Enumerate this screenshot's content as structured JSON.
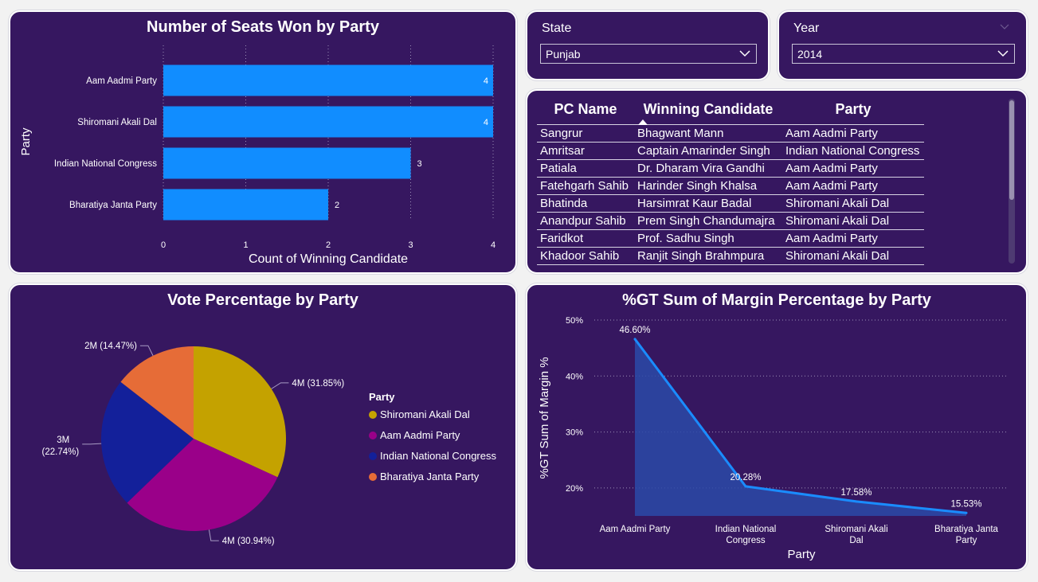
{
  "colors": {
    "card_bg": "#361760",
    "bar": "#118dff",
    "pie_shiromani": "#c4a200",
    "pie_aap": "#9a0089",
    "pie_inc": "#13209a",
    "pie_bjp": "#e66c37",
    "area_line": "#1a8cff"
  },
  "seats_chart": {
    "title": "Number of Seats Won by Party",
    "chart_data": {
      "type": "bar",
      "orientation": "horizontal",
      "categories": [
        "Aam Aadmi Party",
        "Shiromani Akali Dal",
        "Indian National Congress",
        "Bharatiya Janta Party"
      ],
      "values": [
        4,
        4,
        3,
        2
      ],
      "data_labels": [
        "4",
        "4",
        "3",
        "2"
      ],
      "xlabel": "Count of Winning Candidate",
      "ylabel": "Party",
      "xlim": [
        0,
        4
      ],
      "xticks": [
        "0",
        "1",
        "2",
        "3",
        "4"
      ],
      "grid": "vertical dotted"
    }
  },
  "state_slicer": {
    "label": "State",
    "value": "Punjab"
  },
  "year_slicer": {
    "label": "Year",
    "value": "2014"
  },
  "pc_table": {
    "columns": [
      "PC Name",
      "Winning Candidate",
      "Party"
    ],
    "sort_column": 1,
    "rows": [
      [
        "Sangrur",
        "Bhagwant Mann",
        "Aam Aadmi Party"
      ],
      [
        "Amritsar",
        "Captain Amarinder Singh",
        "Indian National Congress"
      ],
      [
        "Patiala",
        "Dr. Dharam Vira Gandhi",
        "Aam Aadmi Party"
      ],
      [
        "Fatehgarh Sahib",
        "Harinder Singh Khalsa",
        "Aam Aadmi Party"
      ],
      [
        "Bhatinda",
        "Harsimrat Kaur Badal",
        "Shiromani Akali Dal"
      ],
      [
        "Anandpur Sahib",
        "Prem Singh Chandumajra",
        "Shiromani Akali Dal"
      ],
      [
        "Faridkot",
        "Prof. Sadhu Singh",
        "Aam Aadmi Party"
      ],
      [
        "Khadoor Sahib",
        "Ranjit Singh Brahmpura",
        "Shiromani Akali Dal"
      ]
    ]
  },
  "vote_chart": {
    "title": "Vote Percentage by Party",
    "chart_data": {
      "type": "pie",
      "legend_title": "Party",
      "legend_position": "right",
      "slices": [
        {
          "name": "Shiromani Akali Dal",
          "percent": 31.85,
          "label": "4M (31.85%)"
        },
        {
          "name": "Aam Aadmi Party",
          "percent": 30.94,
          "label": "4M (30.94%)"
        },
        {
          "name": "Indian National Congress",
          "percent": 22.74,
          "label_line1": "3M",
          "label_line2": "(22.74%)"
        },
        {
          "name": "Bharatiya Janta Party",
          "percent": 14.47,
          "label": "2M (14.47%)"
        }
      ]
    }
  },
  "margin_chart": {
    "title": "%GT Sum of Margin Percentage by Party",
    "chart_data": {
      "type": "area",
      "categories": [
        [
          "Aam Aadmi Party"
        ],
        [
          "Indian National",
          "Congress"
        ],
        [
          "Shiromani Akali",
          "Dal"
        ],
        [
          "Bharatiya Janta",
          "Party"
        ]
      ],
      "values": [
        46.6,
        20.28,
        17.58,
        15.53
      ],
      "data_labels": [
        "46.60%",
        "20.28%",
        "17.58%",
        "15.53%"
      ],
      "xlabel": "Party",
      "ylabel": "%GT Sum of Margin %",
      "ylim": [
        15,
        50
      ],
      "yticks": [
        20,
        30,
        40,
        50
      ],
      "ytick_labels": [
        "20%",
        "30%",
        "40%",
        "50%"
      ],
      "grid": "horizontal dotted"
    }
  }
}
